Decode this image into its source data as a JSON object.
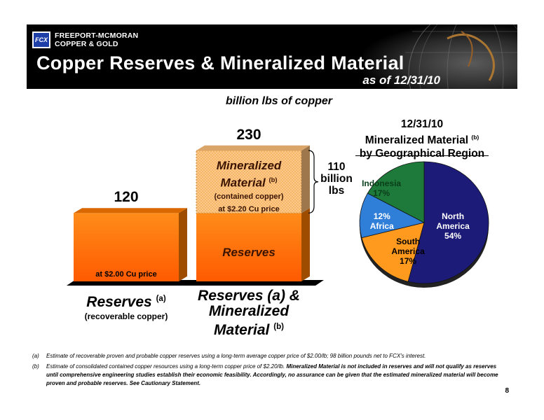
{
  "header": {
    "logo_mark": "FCX",
    "company_line1": "FREEPORT-MCMORAN",
    "company_line2": "COPPER & GOLD",
    "title": "Copper Reserves & Mineralized Material",
    "subtitle": "as of 12/31/10"
  },
  "chart_data": [
    {
      "type": "bar",
      "units": "billion lbs of copper",
      "categories": [
        {
          "label": "Reserves",
          "note": "(a)",
          "sub": "(recoverable copper)"
        },
        {
          "label": "Reserves (a) & Mineralized Material",
          "note": "(b)"
        }
      ],
      "total_labels": [
        "120",
        "230"
      ],
      "stack_scale": 230,
      "stacks": [
        [
          {
            "name": "Reserves",
            "value": 120,
            "label": "",
            "price": "at $2.00 Cu price",
            "color": "#ff7a00"
          }
        ],
        [
          {
            "name": "Reserves",
            "value": 120,
            "label": "Reserves",
            "price": "",
            "color": "#ff7a00"
          },
          {
            "name": "Mineralized Material",
            "value": 110,
            "label": "Mineralized Material",
            "note": "(b)",
            "sub": "(contained copper)",
            "price": "at $2.20 Cu price",
            "color": "#ffc27a"
          }
        ]
      ],
      "bracket_label": [
        "110",
        "billion",
        "lbs"
      ]
    },
    {
      "type": "pie",
      "title": [
        "12/31/10",
        "Mineralized Material",
        "by Geographical Region"
      ],
      "title_note": "(b)",
      "slices": [
        {
          "name": [
            "North",
            "America"
          ],
          "value": 54,
          "pct": "54%",
          "color": "#1c1c78"
        },
        {
          "name": [
            "South",
            "America"
          ],
          "value": 17,
          "pct": "17%",
          "color": "#ff9a1f"
        },
        {
          "name": [
            "Africa"
          ],
          "value": 12,
          "pct": "12%",
          "color": "#2f7fd8"
        },
        {
          "name": [
            "Indonesia"
          ],
          "value": 17,
          "pct": "17%",
          "color": "#1e7a3a"
        }
      ]
    }
  ],
  "footnotes": [
    {
      "key": "(a)",
      "text": "Estimate of recoverable proven and probable copper reserves using a long-term average copper price of $2.00/lb; 98 billion pounds net to FCX's interest."
    },
    {
      "key": "(b)",
      "text": "Estimate of consolidated contained copper resources using a long-term copper price of $2.20/lb.",
      "bold": "Mineralized Material is not included in reserves and will not qualify as reserves until comprehensive engineering studies establish their economic feasibility. Accordingly, no assurance can be given that the estimated mineralized material will become proven and probable reserves. See Cautionary Statement."
    }
  ],
  "page_number": "8"
}
